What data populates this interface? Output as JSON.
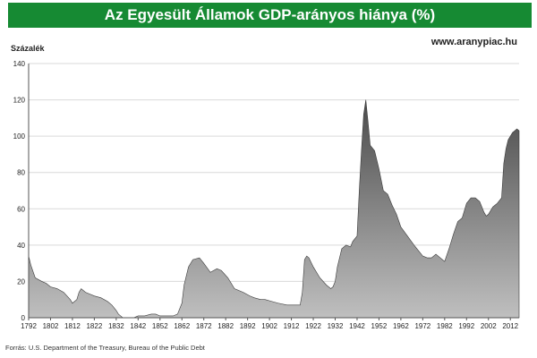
{
  "header": {
    "title": "Az Egyesült Államok GDP-arányos hiánya (%)",
    "site": "www.aranypiac.hu",
    "y_unit": "Százalék"
  },
  "footer": {
    "source": "Forrás: U.S. Department of the Treasury, Bureau of the Public Debt"
  },
  "colors": {
    "header_bg": "#168a33",
    "area_dark": "#4a4a4a",
    "area_light": "#bfbfbf",
    "grid": "#d9d9d9"
  },
  "chart_data": {
    "type": "area",
    "title": "Az Egyesült Államok GDP-arányos hiánya (%)",
    "ylabel": "Százalék",
    "xlabel": "",
    "ylim": [
      0,
      140
    ],
    "xlim": [
      1792,
      2016
    ],
    "grid": true,
    "x_ticks": [
      "1792",
      "1802",
      "1812",
      "1822",
      "1832",
      "1842",
      "1852",
      "1862",
      "1872",
      "1882",
      "1892",
      "1902",
      "1912",
      "1922",
      "1932",
      "1942",
      "1952",
      "1962",
      "1972",
      "1982",
      "1992",
      "2002",
      "2012"
    ],
    "y_ticks": [
      "0",
      "20",
      "40",
      "60",
      "80",
      "100",
      "120",
      "140"
    ],
    "series": [
      {
        "x": [
          1792,
          1793,
          1795,
          1798,
          1800,
          1802,
          1805,
          1808,
          1811,
          1812,
          1814,
          1815,
          1816,
          1818,
          1820,
          1822,
          1825,
          1828,
          1830,
          1832,
          1833,
          1835,
          1840,
          1842,
          1845,
          1848,
          1850,
          1852,
          1855,
          1858,
          1860,
          1862,
          1863,
          1865,
          1867,
          1870,
          1872,
          1875,
          1878,
          1880,
          1883,
          1886,
          1890,
          1893,
          1895,
          1898,
          1900,
          1903,
          1906,
          1910,
          1913,
          1916,
          1917,
          1918,
          1919,
          1920,
          1922,
          1925,
          1928,
          1930,
          1931,
          1932,
          1933,
          1935,
          1937,
          1939,
          1940,
          1942,
          1943,
          1944,
          1945,
          1946,
          1947,
          1948,
          1950,
          1952,
          1954,
          1956,
          1958,
          1960,
          1962,
          1965,
          1968,
          1970,
          1972,
          1974,
          1976,
          1978,
          1980,
          1982,
          1984,
          1986,
          1988,
          1990,
          1992,
          1994,
          1996,
          1998,
          2000,
          2001,
          2002,
          2004,
          2006,
          2008,
          2009,
          2010,
          2011,
          2012,
          2013,
          2014,
          2015,
          2016
        ],
        "values": [
          34,
          29,
          22,
          20,
          19,
          17,
          16,
          14,
          10,
          8,
          10,
          14,
          16,
          14,
          13,
          12,
          11,
          9,
          7,
          4,
          2,
          0,
          0,
          1,
          1,
          2,
          2,
          1,
          1,
          1,
          2,
          8,
          18,
          28,
          32,
          33,
          30,
          25,
          27,
          26,
          22,
          16,
          14,
          12,
          11,
          10,
          10,
          9,
          8,
          7,
          7,
          7,
          14,
          32,
          34,
          33,
          28,
          22,
          18,
          16,
          17,
          20,
          28,
          38,
          40,
          39,
          42,
          45,
          70,
          92,
          112,
          120,
          108,
          95,
          92,
          82,
          70,
          68,
          62,
          57,
          50,
          45,
          40,
          37,
          34,
          33,
          33,
          35,
          33,
          31,
          38,
          46,
          53,
          55,
          63,
          66,
          66,
          64,
          58,
          56,
          57,
          61,
          63,
          66,
          85,
          93,
          98,
          100,
          102,
          103,
          104,
          103
        ]
      }
    ]
  }
}
